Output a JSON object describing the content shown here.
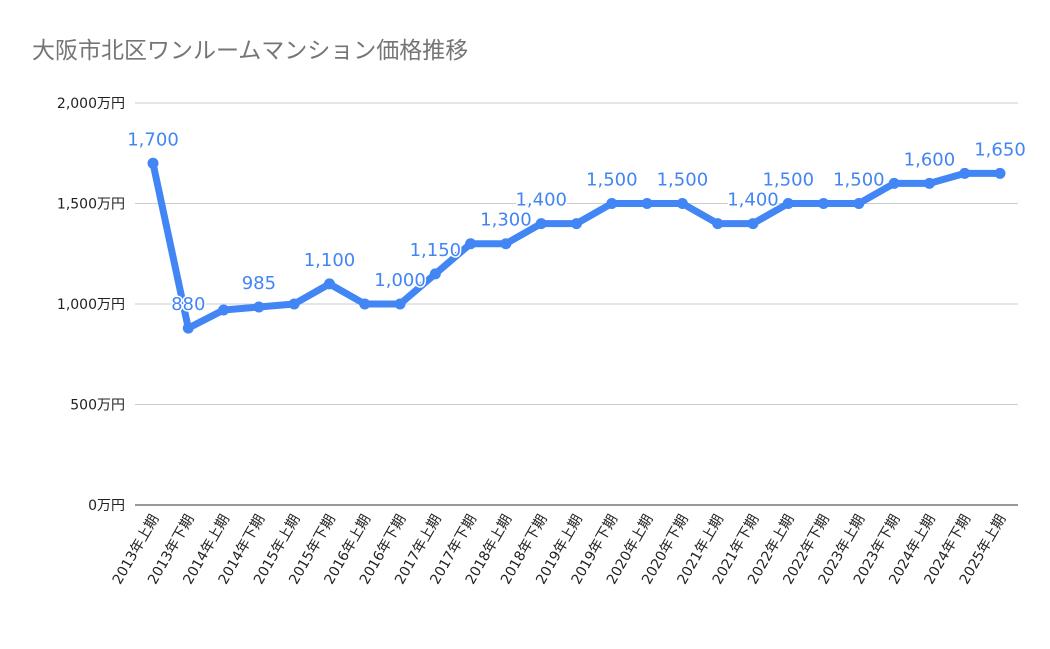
{
  "chart_data": {
    "type": "line",
    "title": "大阪市北区ワンルームマンション価格推移",
    "xlabel": "",
    "ylabel": "",
    "ylim": [
      0,
      2000
    ],
    "yticks": [
      0,
      500,
      1000,
      1500,
      2000
    ],
    "ytick_labels": [
      "0万円",
      "500万円",
      "1,000万円",
      "1,500万円",
      "2,000万円"
    ],
    "grid": true,
    "legend": "none",
    "color": "#4285f4",
    "categories": [
      "2013年上期",
      "2013年下期",
      "2014年上期",
      "2014年下期",
      "2015年上期",
      "2015年下期",
      "2016年上期",
      "2016年下期",
      "2017年上期",
      "2017年下期",
      "2018年上期",
      "2018年下期",
      "2019年上期",
      "2019年下期",
      "2020年上期",
      "2020年下期",
      "2021年上期",
      "2021年下期",
      "2022年上期",
      "2022年下期",
      "2023年上期",
      "2023年下期",
      "2024年上期",
      "2024年下期",
      "2025年上期"
    ],
    "values": [
      1700,
      880,
      970,
      985,
      1000,
      1100,
      1000,
      1000,
      1150,
      1300,
      1300,
      1400,
      1400,
      1500,
      1500,
      1500,
      1400,
      1400,
      1500,
      1500,
      1500,
      1600,
      1600,
      1650,
      1650
    ],
    "data_labels": [
      {
        "index": 0,
        "text": "1,700"
      },
      {
        "index": 1,
        "text": "880"
      },
      {
        "index": 3,
        "text": "985"
      },
      {
        "index": 5,
        "text": "1,100"
      },
      {
        "index": 7,
        "text": "1,000"
      },
      {
        "index": 8,
        "text": "1,150"
      },
      {
        "index": 10,
        "text": "1,300"
      },
      {
        "index": 11,
        "text": "1,400"
      },
      {
        "index": 13,
        "text": "1,500"
      },
      {
        "index": 15,
        "text": "1,500"
      },
      {
        "index": 17,
        "text": "1,400"
      },
      {
        "index": 18,
        "text": "1,500"
      },
      {
        "index": 20,
        "text": "1,500"
      },
      {
        "index": 22,
        "text": "1,600"
      },
      {
        "index": 24,
        "text": "1,650"
      }
    ]
  }
}
